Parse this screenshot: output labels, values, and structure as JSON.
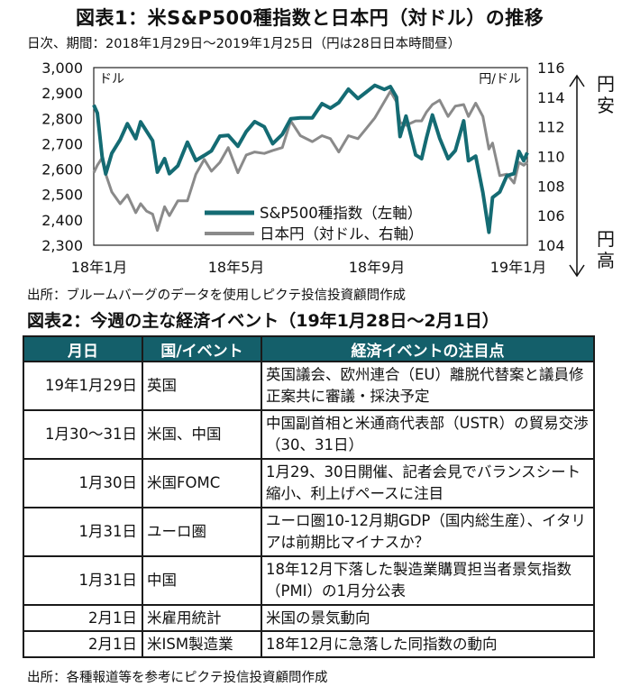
{
  "chart_title": "図表1：米S&P500種指数と日本円（対ドル）の推移",
  "chart_subtitle": "日次、期間：2018年1月29日～2019年1月25日（円は28日日本時間昼）",
  "chart_source": "出所：ブルームバーグのデータを使用しピクテ投信投資顧問作成",
  "chart_data": {
    "type": "line",
    "title": "図表1：米S&P500種指数と日本円（対ドル）の推移",
    "x_ticks": [
      "18年1月",
      "18年5月",
      "18年9月",
      "19年1月"
    ],
    "y_left": {
      "unit": "ドル",
      "ticks": [
        "2,300",
        "2,400",
        "2,500",
        "2,600",
        "2,700",
        "2,800",
        "2,900",
        "3,000"
      ],
      "range": [
        2300,
        3000
      ]
    },
    "y_right": {
      "unit": "円/ドル",
      "ticks": [
        "104",
        "106",
        "108",
        "110",
        "112",
        "114",
        "116"
      ],
      "range": [
        104,
        116
      ]
    },
    "right_arrow": {
      "top": "円安",
      "bottom": "円高"
    },
    "legend_position": "center-right, lower",
    "series": [
      {
        "name": "S&P500種指数（左軸）",
        "axis": "left",
        "color": "#146b73",
        "dates": [
          "2018-01-29",
          "2018-02-01",
          "2018-02-05",
          "2018-02-08",
          "2018-02-13",
          "2018-02-20",
          "2018-02-26",
          "2018-03-05",
          "2018-03-09",
          "2018-03-14",
          "2018-03-19",
          "2018-03-23",
          "2018-03-29",
          "2018-04-02",
          "2018-04-09",
          "2018-04-17",
          "2018-04-24",
          "2018-05-01",
          "2018-05-07",
          "2018-05-14",
          "2018-05-21",
          "2018-05-29",
          "2018-06-05",
          "2018-06-12",
          "2018-06-20",
          "2018-06-27",
          "2018-07-05",
          "2018-07-12",
          "2018-07-20",
          "2018-07-30",
          "2018-08-07",
          "2018-08-14",
          "2018-08-21",
          "2018-08-29",
          "2018-09-06",
          "2018-09-13",
          "2018-09-20",
          "2018-09-28",
          "2018-10-03",
          "2018-10-08",
          "2018-10-11",
          "2018-10-16",
          "2018-10-24",
          "2018-10-29",
          "2018-11-02",
          "2018-11-07",
          "2018-11-13",
          "2018-11-20",
          "2018-11-26",
          "2018-12-03",
          "2018-12-07",
          "2018-12-13",
          "2018-12-19",
          "2018-12-24",
          "2018-12-27",
          "2019-01-02",
          "2019-01-08",
          "2019-01-14",
          "2019-01-18",
          "2019-01-22",
          "2019-01-25"
        ],
        "values": [
          2853,
          2821,
          2649,
          2581,
          2662,
          2716,
          2779,
          2720,
          2786,
          2749,
          2712,
          2588,
          2641,
          2582,
          2613,
          2706,
          2634,
          2654,
          2672,
          2730,
          2733,
          2690,
          2748,
          2787,
          2767,
          2700,
          2737,
          2798,
          2802,
          2802,
          2858,
          2840,
          2862,
          2915,
          2878,
          2904,
          2930,
          2914,
          2925,
          2884,
          2728,
          2809,
          2656,
          2641,
          2723,
          2813,
          2722,
          2641,
          2673,
          2790,
          2633,
          2651,
          2507,
          2351,
          2488,
          2510,
          2574,
          2582,
          2670,
          2633,
          2665
        ]
      },
      {
        "name": "日本円（対ドル、右軸）",
        "axis": "right",
        "color": "#8a8a8a",
        "dates": [
          "2018-01-29",
          "2018-02-01",
          "2018-02-05",
          "2018-02-08",
          "2018-02-13",
          "2018-02-20",
          "2018-02-26",
          "2018-03-05",
          "2018-03-09",
          "2018-03-14",
          "2018-03-19",
          "2018-03-23",
          "2018-03-29",
          "2018-04-02",
          "2018-04-09",
          "2018-04-17",
          "2018-04-24",
          "2018-05-01",
          "2018-05-07",
          "2018-05-14",
          "2018-05-21",
          "2018-05-29",
          "2018-06-05",
          "2018-06-12",
          "2018-06-20",
          "2018-06-27",
          "2018-07-05",
          "2018-07-12",
          "2018-07-20",
          "2018-07-30",
          "2018-08-07",
          "2018-08-14",
          "2018-08-21",
          "2018-08-29",
          "2018-09-06",
          "2018-09-13",
          "2018-09-20",
          "2018-09-28",
          "2018-10-03",
          "2018-10-08",
          "2018-10-11",
          "2018-10-16",
          "2018-10-24",
          "2018-10-29",
          "2018-11-02",
          "2018-11-07",
          "2018-11-13",
          "2018-11-20",
          "2018-11-26",
          "2018-12-03",
          "2018-12-07",
          "2018-12-13",
          "2018-12-19",
          "2018-12-24",
          "2018-12-27",
          "2019-01-02",
          "2019-01-08",
          "2019-01-14",
          "2019-01-18",
          "2019-01-22",
          "2019-01-25"
        ],
        "values": [
          108.9,
          109.4,
          109.9,
          108.8,
          107.6,
          106.8,
          107.4,
          106.2,
          106.8,
          106.3,
          106.1,
          105.0,
          106.6,
          106.0,
          107.0,
          107.0,
          108.8,
          109.8,
          109.0,
          109.6,
          110.6,
          108.9,
          110.1,
          110.3,
          110.2,
          110.4,
          110.6,
          112.4,
          111.4,
          111.0,
          111.4,
          111.2,
          110.3,
          111.4,
          111.2,
          111.9,
          112.6,
          113.7,
          114.4,
          113.7,
          112.3,
          112.1,
          112.4,
          112.4,
          113.0,
          113.5,
          113.8,
          112.7,
          113.4,
          113.5,
          112.7,
          113.6,
          112.7,
          110.5,
          110.9,
          108.7,
          108.8,
          108.2,
          109.6,
          109.4,
          109.6
        ]
      }
    ]
  },
  "table": {
    "title": "図表2：今週の主な経済イベント（19年1月28日～2月1日）",
    "headers": [
      "月日",
      "国/イベント",
      "経済イベントの注目点"
    ],
    "rows": [
      {
        "date": "19年1月29日",
        "country": "英国",
        "note": "英国議会、欧州連合（EU）離脱代替案と議員修正案共に審議・採決予定"
      },
      {
        "date": "1月30～31日",
        "country": "米国、中国",
        "note": "中国副首相と米通商代表部（USTR）の貿易交渉（30、31日）"
      },
      {
        "date": "1月30日",
        "country": "米国FOMC",
        "note": "1月29、30日開催、記者会見でバランスシート縮小、利上げペースに注目"
      },
      {
        "date": "1月31日",
        "country": "ユーロ圏",
        "note": "ユーロ圏10-12月期GDP（国内総生産）、イタリアは前期比マイナスか？"
      },
      {
        "date": "1月31日",
        "country": "中国",
        "note": "18年12月下落した製造業購買担当者景気指数（PMI）の1月分公表"
      },
      {
        "date": "2月1日",
        "country": "米雇用統計",
        "note": "米国の景気動向"
      },
      {
        "date": "2月1日",
        "country": "米ISM製造業",
        "note": "18年12月に急落した同指数の動向"
      }
    ],
    "source": "出所：各種報道等を参考にピクテ投信投資顧問作成"
  }
}
